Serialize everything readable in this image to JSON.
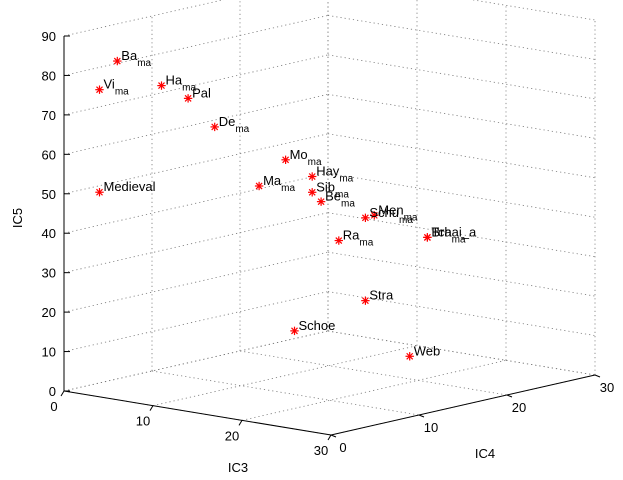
{
  "chart_data": {
    "type": "scatter",
    "dimensions": 3,
    "xlabel": "IC3",
    "ylabel": "IC4",
    "zlabel": "IC5",
    "xlim": [
      0,
      30
    ],
    "ylim": [
      0,
      30
    ],
    "zlim": [
      0,
      90
    ],
    "xticks": [
      "0",
      "10",
      "20",
      "30"
    ],
    "yticks": [
      "0",
      "10",
      "20",
      "30"
    ],
    "zticks": [
      "0",
      "10",
      "20",
      "30",
      "40",
      "50",
      "60",
      "70",
      "80",
      "90"
    ],
    "grid": true,
    "marker": "*",
    "marker_color": "#ff0000",
    "points": [
      {
        "label": "Ba",
        "sub": "ma",
        "x": 5,
        "y": 1,
        "z": 85
      },
      {
        "label": "Vi",
        "sub": "ma",
        "x": 3,
        "y": 1,
        "z": 77
      },
      {
        "label": "Ha",
        "sub": "ma",
        "x": 7,
        "y": 4,
        "z": 78
      },
      {
        "label": "Pal",
        "sub": "",
        "x": 9,
        "y": 5,
        "z": 75
      },
      {
        "label": "De",
        "sub": "ma",
        "x": 11,
        "y": 6,
        "z": 68
      },
      {
        "label": "Medieval",
        "sub": "",
        "x": 3,
        "y": 1,
        "z": 51
      },
      {
        "label": "Mo",
        "sub": "ma",
        "x": 16,
        "y": 9,
        "z": 60
      },
      {
        "label": "Ma",
        "sub": "ma",
        "x": 15,
        "y": 7,
        "z": 54
      },
      {
        "label": "Hay",
        "sub": "ma",
        "x": 18,
        "y": 10,
        "z": 56
      },
      {
        "label": "Sib",
        "sub": "ma",
        "x": 18,
        "y": 10,
        "z": 52
      },
      {
        "label": "Be",
        "sub": "ma",
        "x": 19,
        "y": 10,
        "z": 50
      },
      {
        "label": "Men",
        "sub": "ma",
        "x": 23,
        "y": 12,
        "z": 47
      },
      {
        "label": "Schu",
        "sub": "ma",
        "x": 22,
        "y": 12,
        "z": 46
      },
      {
        "label": "Ra",
        "sub": "ma",
        "x": 20,
        "y": 11,
        "z": 40
      },
      {
        "label": "Bra",
        "sub": "ma",
        "x": 26,
        "y": 15,
        "z": 41
      },
      {
        "label": "Tchai_a",
        "sub": "",
        "x": 26,
        "y": 15,
        "z": 41
      },
      {
        "label": "Stra",
        "sub": "",
        "x": 22,
        "y": 12,
        "z": 25
      },
      {
        "label": "Schoe",
        "sub": "",
        "x": 17,
        "y": 9,
        "z": 17
      },
      {
        "label": "Web",
        "sub": "",
        "x": 25,
        "y": 14,
        "z": 11
      }
    ]
  }
}
